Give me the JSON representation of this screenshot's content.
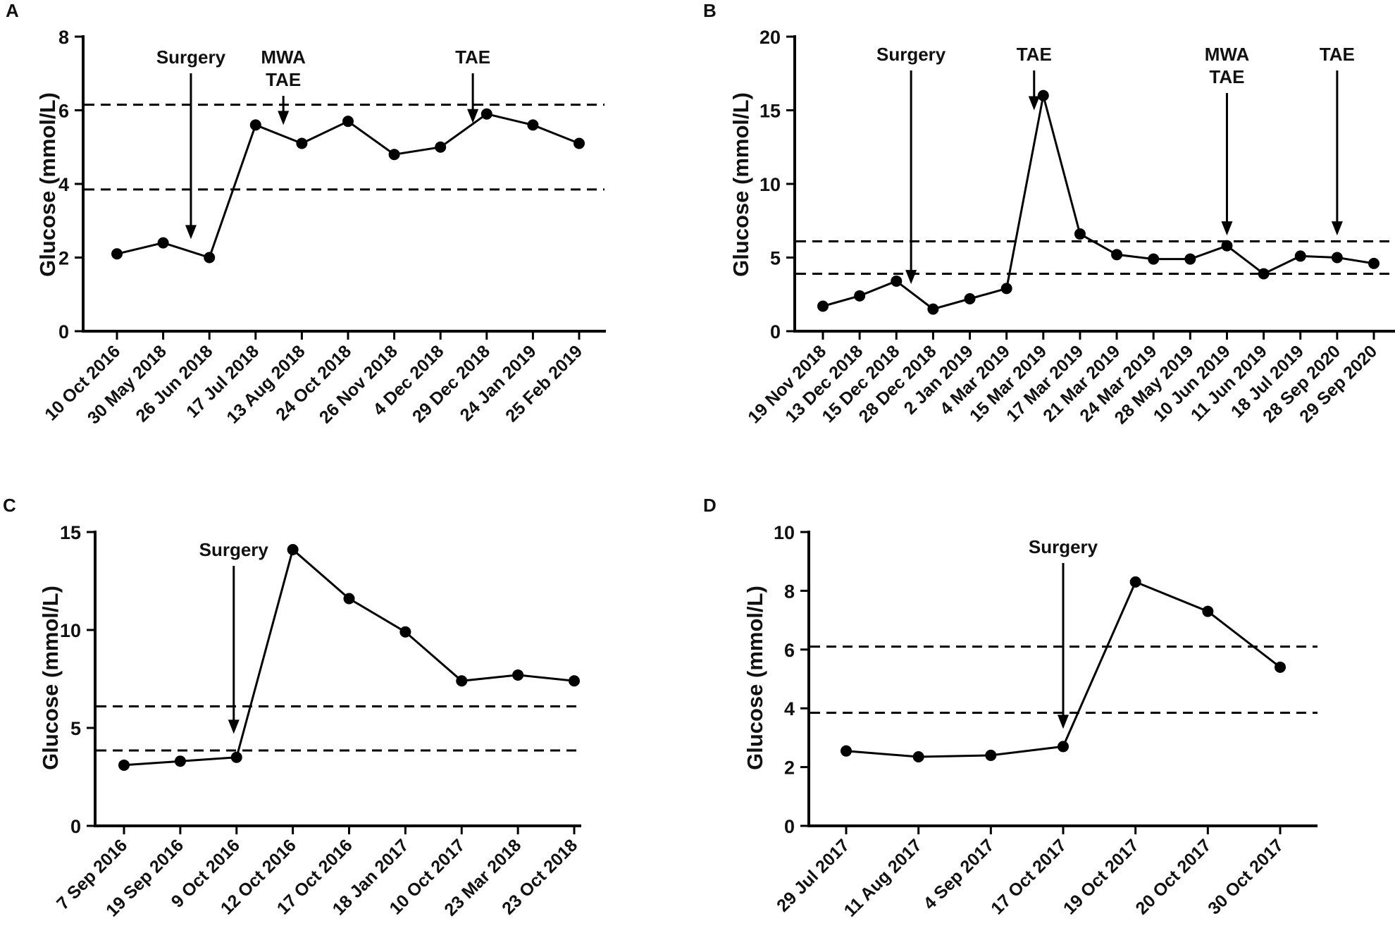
{
  "chart_data": [
    {
      "panel": "A",
      "type": "line",
      "title": "",
      "xlabel": "",
      "ylabel": "Glucose (mmol/L)",
      "ylim": [
        0,
        8
      ],
      "yticks": [
        0,
        2,
        4,
        6,
        8
      ],
      "categories": [
        "10 Oct 2016",
        "30 May 2018",
        "26 Jun 2018",
        "17 Jul 2018",
        "13 Aug 2018",
        "24 Oct 2018",
        "26 Nov 2018",
        "4 Dec 2018",
        "29 Dec 2018",
        "24 Jan 2019",
        "25 Feb 2019"
      ],
      "values": [
        2.1,
        2.4,
        2.0,
        5.6,
        5.1,
        5.7,
        4.8,
        5.0,
        5.9,
        5.6,
        5.1
      ],
      "reference_lines": [
        6.15,
        3.85
      ],
      "annotations": [
        {
          "lines": [
            "Surgery"
          ],
          "at": 1.6,
          "arrow_from": 5.0,
          "arrow_to": 2.5
        },
        {
          "lines": [
            "MWA",
            "TAE"
          ],
          "at": 3.6,
          "arrow_from": 5.6,
          "arrow_to": 5.6
        },
        {
          "lines": [
            "TAE"
          ],
          "at": 7.7,
          "arrow_from": 5.6,
          "arrow_to": 5.65
        }
      ]
    },
    {
      "panel": "B",
      "type": "line",
      "title": "",
      "xlabel": "",
      "ylabel": "Glucose (mmol/L)",
      "ylim": [
        0,
        20
      ],
      "yticks": [
        0,
        5,
        10,
        15,
        20
      ],
      "categories": [
        "19 Nov 2018",
        "13 Dec 2018",
        "15 Dec 2018",
        "28 Dec 2018",
        "2 Jan 2019",
        "4 Mar 2019",
        "15 Mar 2019",
        "17 Mar 2019",
        "21 Mar 2019",
        "24 Mar 2019",
        "28 May 2019",
        "10 Jun 2019",
        "11 Jun 2019",
        "18 Jul 2019",
        "28 Sep 2020",
        "29 Sep 2020"
      ],
      "values": [
        1.7,
        2.4,
        3.4,
        1.5,
        2.2,
        2.9,
        16.0,
        6.6,
        5.2,
        4.9,
        4.9,
        5.8,
        3.9,
        5.1,
        5.0,
        4.6
      ],
      "reference_lines": [
        6.1,
        3.9
      ],
      "annotations": [
        {
          "lines": [
            "Surgery"
          ],
          "at": 2.4,
          "arrow_from": 13.0,
          "arrow_to": 3.2
        },
        {
          "lines": [
            "TAE"
          ],
          "at": 5.75,
          "arrow_from": 16.3,
          "arrow_to": 15.0
        },
        {
          "lines": [
            "MWA",
            "TAE"
          ],
          "at": 11.0,
          "arrow_from": 16.4,
          "arrow_to": 6.5
        },
        {
          "lines": [
            "TAE"
          ],
          "at": 14.0,
          "arrow_from": 16.4,
          "arrow_to": 6.5
        }
      ]
    },
    {
      "panel": "C",
      "type": "line",
      "title": "",
      "xlabel": "",
      "ylabel": "Glucose (mmol/L)",
      "ylim": [
        0,
        15
      ],
      "yticks": [
        0,
        5,
        10,
        15
      ],
      "categories": [
        "7 Sep 2016",
        "19 Sep 2016",
        "9 Oct 2016",
        "12 Oct 2016",
        "17 Oct 2016",
        "18 Jan 2017",
        "10 Oct 2017",
        "23 Mar 2018",
        "23 Oct 2018"
      ],
      "values": [
        3.1,
        3.3,
        3.5,
        14.1,
        11.6,
        9.9,
        7.4,
        7.7,
        7.4
      ],
      "reference_lines": [
        6.1,
        3.85
      ],
      "annotations": [
        {
          "lines": [
            "Surgery"
          ],
          "at": 1.95,
          "arrow_from": 13.4,
          "arrow_to": 4.7
        }
      ]
    },
    {
      "panel": "D",
      "type": "line",
      "title": "",
      "xlabel": "",
      "ylabel": "Glucose (mmol/L)",
      "ylim": [
        0,
        10
      ],
      "yticks": [
        0,
        2,
        4,
        6,
        8,
        10
      ],
      "categories": [
        "29 Jul 2017",
        "11 Aug 2017",
        "4 Sep 2017",
        "17 Oct 2017",
        "19 Oct 2017",
        "20 Oct 2017",
        "30 Oct 2017"
      ],
      "values": [
        2.55,
        2.35,
        2.4,
        2.7,
        8.3,
        7.3,
        5.4
      ],
      "reference_lines": [
        6.1,
        3.85
      ],
      "annotations": [
        {
          "lines": [
            "Surgery"
          ],
          "at": 3.0,
          "arrow_from": 8.8,
          "arrow_to": 3.3
        }
      ]
    }
  ]
}
